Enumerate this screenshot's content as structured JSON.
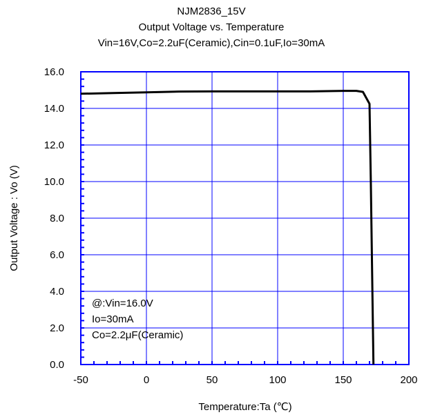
{
  "chart_data": {
    "type": "line",
    "title": "NJM2836_15V",
    "subtitle": "Output Voltage vs. Temperature",
    "conditions": "Vin=16V,Co=2.2uF(Ceramic),Cin=0.1uF,Io=30mA",
    "xlabel": "Temperature:Ta (℃)",
    "ylabel": "Output Voltage : Vo (V)",
    "xlim": [
      -50,
      200
    ],
    "ylim": [
      0,
      16
    ],
    "xticks": [
      -50,
      0,
      50,
      100,
      150,
      200
    ],
    "xtick_labels": [
      "-50",
      "0",
      "50",
      "100",
      "150",
      "200"
    ],
    "yticks": [
      0,
      2,
      4,
      6,
      8,
      10,
      12,
      14,
      16
    ],
    "ytick_labels": [
      "0.0",
      "2.0",
      "4.0",
      "6.0",
      "8.0",
      "10.0",
      "12.0",
      "14.0",
      "16.0"
    ],
    "grid": true,
    "colors": {
      "axis": "#0000ff",
      "grid": "#0000ff",
      "line": "#000000"
    },
    "series": [
      {
        "x": [
          -50,
          -25,
          0,
          25,
          50,
          75,
          100,
          125,
          150,
          160,
          165,
          170,
          171,
          172,
          173
        ],
        "values": [
          14.8,
          14.84,
          14.88,
          14.92,
          14.93,
          14.93,
          14.93,
          14.93,
          14.96,
          14.96,
          14.9,
          14.25,
          10.0,
          5.0,
          0.0
        ]
      }
    ],
    "annotation": [
      "@:Vin=16.0V",
      "Io=30mA",
      "Co=2.2μF(Ceramic)"
    ]
  }
}
